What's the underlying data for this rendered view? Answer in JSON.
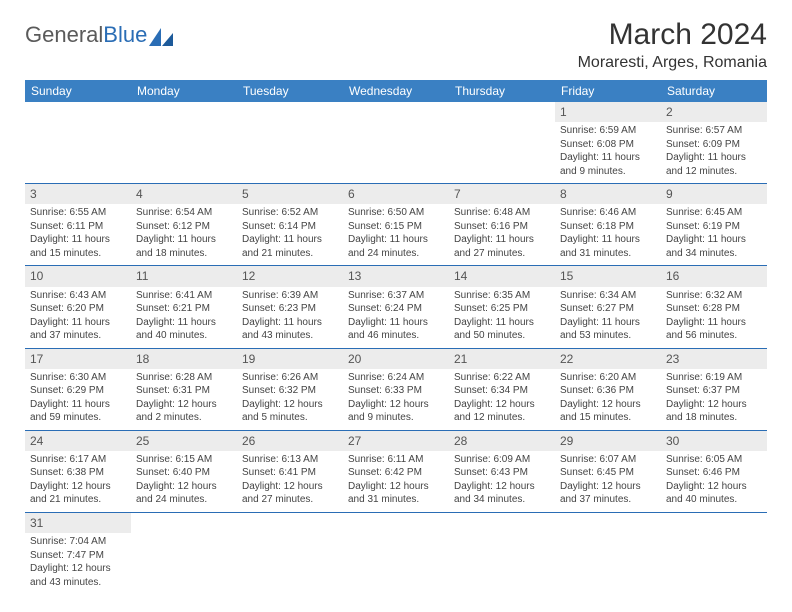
{
  "logo": {
    "text1": "General",
    "text2": "Blue"
  },
  "header": {
    "title": "March 2024",
    "location": "Moraresti, Arges, Romania"
  },
  "colors": {
    "header_bg": "#3a80c3",
    "rule": "#2a6db5",
    "daynum_bg": "#ececec"
  },
  "days_of_week": [
    "Sunday",
    "Monday",
    "Tuesday",
    "Wednesday",
    "Thursday",
    "Friday",
    "Saturday"
  ],
  "weeks": [
    [
      null,
      null,
      null,
      null,
      null,
      {
        "n": "1",
        "sr": "Sunrise: 6:59 AM",
        "ss": "Sunset: 6:08 PM",
        "d1": "Daylight: 11 hours",
        "d2": "and 9 minutes."
      },
      {
        "n": "2",
        "sr": "Sunrise: 6:57 AM",
        "ss": "Sunset: 6:09 PM",
        "d1": "Daylight: 11 hours",
        "d2": "and 12 minutes."
      }
    ],
    [
      {
        "n": "3",
        "sr": "Sunrise: 6:55 AM",
        "ss": "Sunset: 6:11 PM",
        "d1": "Daylight: 11 hours",
        "d2": "and 15 minutes."
      },
      {
        "n": "4",
        "sr": "Sunrise: 6:54 AM",
        "ss": "Sunset: 6:12 PM",
        "d1": "Daylight: 11 hours",
        "d2": "and 18 minutes."
      },
      {
        "n": "5",
        "sr": "Sunrise: 6:52 AM",
        "ss": "Sunset: 6:14 PM",
        "d1": "Daylight: 11 hours",
        "d2": "and 21 minutes."
      },
      {
        "n": "6",
        "sr": "Sunrise: 6:50 AM",
        "ss": "Sunset: 6:15 PM",
        "d1": "Daylight: 11 hours",
        "d2": "and 24 minutes."
      },
      {
        "n": "7",
        "sr": "Sunrise: 6:48 AM",
        "ss": "Sunset: 6:16 PM",
        "d1": "Daylight: 11 hours",
        "d2": "and 27 minutes."
      },
      {
        "n": "8",
        "sr": "Sunrise: 6:46 AM",
        "ss": "Sunset: 6:18 PM",
        "d1": "Daylight: 11 hours",
        "d2": "and 31 minutes."
      },
      {
        "n": "9",
        "sr": "Sunrise: 6:45 AM",
        "ss": "Sunset: 6:19 PM",
        "d1": "Daylight: 11 hours",
        "d2": "and 34 minutes."
      }
    ],
    [
      {
        "n": "10",
        "sr": "Sunrise: 6:43 AM",
        "ss": "Sunset: 6:20 PM",
        "d1": "Daylight: 11 hours",
        "d2": "and 37 minutes."
      },
      {
        "n": "11",
        "sr": "Sunrise: 6:41 AM",
        "ss": "Sunset: 6:21 PM",
        "d1": "Daylight: 11 hours",
        "d2": "and 40 minutes."
      },
      {
        "n": "12",
        "sr": "Sunrise: 6:39 AM",
        "ss": "Sunset: 6:23 PM",
        "d1": "Daylight: 11 hours",
        "d2": "and 43 minutes."
      },
      {
        "n": "13",
        "sr": "Sunrise: 6:37 AM",
        "ss": "Sunset: 6:24 PM",
        "d1": "Daylight: 11 hours",
        "d2": "and 46 minutes."
      },
      {
        "n": "14",
        "sr": "Sunrise: 6:35 AM",
        "ss": "Sunset: 6:25 PM",
        "d1": "Daylight: 11 hours",
        "d2": "and 50 minutes."
      },
      {
        "n": "15",
        "sr": "Sunrise: 6:34 AM",
        "ss": "Sunset: 6:27 PM",
        "d1": "Daylight: 11 hours",
        "d2": "and 53 minutes."
      },
      {
        "n": "16",
        "sr": "Sunrise: 6:32 AM",
        "ss": "Sunset: 6:28 PM",
        "d1": "Daylight: 11 hours",
        "d2": "and 56 minutes."
      }
    ],
    [
      {
        "n": "17",
        "sr": "Sunrise: 6:30 AM",
        "ss": "Sunset: 6:29 PM",
        "d1": "Daylight: 11 hours",
        "d2": "and 59 minutes."
      },
      {
        "n": "18",
        "sr": "Sunrise: 6:28 AM",
        "ss": "Sunset: 6:31 PM",
        "d1": "Daylight: 12 hours",
        "d2": "and 2 minutes."
      },
      {
        "n": "19",
        "sr": "Sunrise: 6:26 AM",
        "ss": "Sunset: 6:32 PM",
        "d1": "Daylight: 12 hours",
        "d2": "and 5 minutes."
      },
      {
        "n": "20",
        "sr": "Sunrise: 6:24 AM",
        "ss": "Sunset: 6:33 PM",
        "d1": "Daylight: 12 hours",
        "d2": "and 9 minutes."
      },
      {
        "n": "21",
        "sr": "Sunrise: 6:22 AM",
        "ss": "Sunset: 6:34 PM",
        "d1": "Daylight: 12 hours",
        "d2": "and 12 minutes."
      },
      {
        "n": "22",
        "sr": "Sunrise: 6:20 AM",
        "ss": "Sunset: 6:36 PM",
        "d1": "Daylight: 12 hours",
        "d2": "and 15 minutes."
      },
      {
        "n": "23",
        "sr": "Sunrise: 6:19 AM",
        "ss": "Sunset: 6:37 PM",
        "d1": "Daylight: 12 hours",
        "d2": "and 18 minutes."
      }
    ],
    [
      {
        "n": "24",
        "sr": "Sunrise: 6:17 AM",
        "ss": "Sunset: 6:38 PM",
        "d1": "Daylight: 12 hours",
        "d2": "and 21 minutes."
      },
      {
        "n": "25",
        "sr": "Sunrise: 6:15 AM",
        "ss": "Sunset: 6:40 PM",
        "d1": "Daylight: 12 hours",
        "d2": "and 24 minutes."
      },
      {
        "n": "26",
        "sr": "Sunrise: 6:13 AM",
        "ss": "Sunset: 6:41 PM",
        "d1": "Daylight: 12 hours",
        "d2": "and 27 minutes."
      },
      {
        "n": "27",
        "sr": "Sunrise: 6:11 AM",
        "ss": "Sunset: 6:42 PM",
        "d1": "Daylight: 12 hours",
        "d2": "and 31 minutes."
      },
      {
        "n": "28",
        "sr": "Sunrise: 6:09 AM",
        "ss": "Sunset: 6:43 PM",
        "d1": "Daylight: 12 hours",
        "d2": "and 34 minutes."
      },
      {
        "n": "29",
        "sr": "Sunrise: 6:07 AM",
        "ss": "Sunset: 6:45 PM",
        "d1": "Daylight: 12 hours",
        "d2": "and 37 minutes."
      },
      {
        "n": "30",
        "sr": "Sunrise: 6:05 AM",
        "ss": "Sunset: 6:46 PM",
        "d1": "Daylight: 12 hours",
        "d2": "and 40 minutes."
      }
    ],
    [
      {
        "n": "31",
        "sr": "Sunrise: 7:04 AM",
        "ss": "Sunset: 7:47 PM",
        "d1": "Daylight: 12 hours",
        "d2": "and 43 minutes."
      },
      null,
      null,
      null,
      null,
      null,
      null
    ]
  ]
}
